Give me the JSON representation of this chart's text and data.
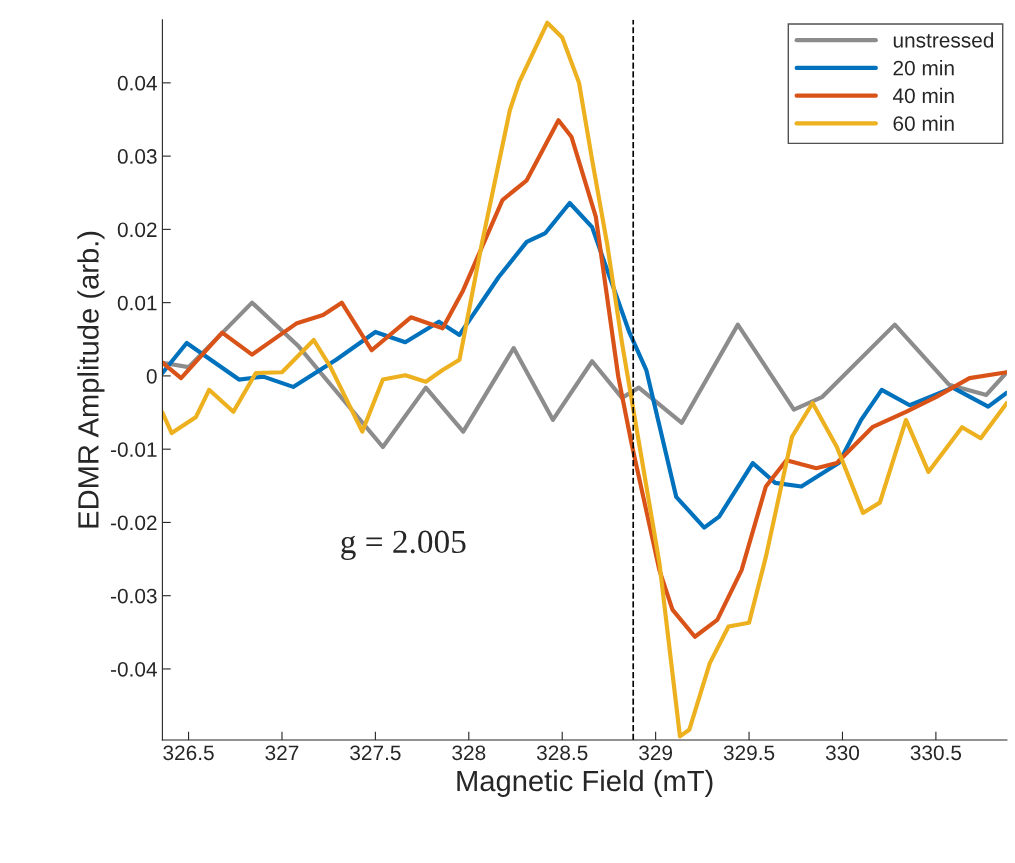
{
  "chart_data": {
    "type": "line",
    "xlabel": "Magnetic Field (mT)",
    "ylabel": "EDMR Amplitude (arb.)",
    "xlim": [
      326.36,
      330.88
    ],
    "ylim": [
      -0.0497,
      0.0486
    ],
    "xticks": [
      326.5,
      327,
      327.5,
      328,
      328.5,
      329,
      329.5,
      330,
      330.5
    ],
    "yticks": [
      -0.04,
      -0.03,
      -0.02,
      -0.01,
      0,
      0.01,
      0.02,
      0.03,
      0.04
    ],
    "grid": false,
    "legend": "top right",
    "line_style": "solid",
    "marker": "none",
    "ref_lines": [
      {
        "axis": "x",
        "value": 328.88,
        "color": "#000000",
        "line_style": "dashed"
      }
    ],
    "annotations": [
      {
        "text": "g = 2.005"
      }
    ],
    "series": [
      {
        "name": "unstressed",
        "color": "#8c8c8c",
        "x": [
          326.36,
          326.5,
          326.84,
          327.09,
          327.54,
          327.77,
          327.97,
          328.24,
          328.45,
          328.66,
          328.82,
          328.91,
          329.14,
          329.44,
          329.74,
          329.89,
          330.28,
          330.57,
          330.77,
          330.88
        ],
        "values": [
          0.0018,
          0.0012,
          0.01,
          0.004,
          -0.0097,
          -0.0016,
          -0.0076,
          0.0038,
          -0.006,
          0.002,
          -0.003,
          -0.0016,
          -0.0064,
          0.007,
          -0.0046,
          -0.0029,
          0.007,
          -0.0012,
          -0.0026,
          0.0005
        ]
      },
      {
        "name": "20 min",
        "color": "#0072bd",
        "x": [
          326.36,
          326.49,
          326.77,
          326.9,
          327.06,
          327.29,
          327.5,
          327.66,
          327.84,
          327.95,
          328.16,
          328.31,
          328.41,
          328.54,
          328.66,
          328.74,
          328.86,
          328.95,
          329.11,
          329.26,
          329.34,
          329.52,
          329.64,
          329.78,
          329.98,
          330.1,
          330.21,
          330.36,
          330.59,
          330.78,
          330.88
        ],
        "values": [
          0.0004,
          0.0045,
          -0.0005,
          -0.0001,
          -0.0015,
          0.0022,
          0.006,
          0.0046,
          0.0074,
          0.0056,
          0.0135,
          0.0183,
          0.0195,
          0.0236,
          0.0203,
          0.0145,
          0.0059,
          0.0008,
          -0.0165,
          -0.0207,
          -0.0192,
          -0.0119,
          -0.0146,
          -0.0151,
          -0.0119,
          -0.006,
          -0.0019,
          -0.004,
          -0.0016,
          -0.0042,
          -0.0023
        ]
      },
      {
        "name": "40 min",
        "color": "#d95319",
        "x": [
          326.36,
          326.46,
          326.68,
          326.84,
          327.08,
          327.22,
          327.32,
          327.48,
          327.69,
          327.86,
          327.97,
          328.18,
          328.31,
          328.48,
          328.55,
          328.68,
          328.8,
          328.87,
          329.02,
          329.09,
          329.21,
          329.33,
          329.46,
          329.59,
          329.7,
          329.86,
          329.97,
          330.16,
          330.34,
          330.5,
          330.68,
          330.88
        ],
        "values": [
          0.0018,
          -0.0003,
          0.0059,
          0.0029,
          0.0072,
          0.0083,
          0.01,
          0.0035,
          0.008,
          0.0065,
          0.0117,
          0.024,
          0.0267,
          0.0349,
          0.0326,
          0.0217,
          -0.0001,
          -0.0091,
          -0.0265,
          -0.0319,
          -0.0356,
          -0.0333,
          -0.0265,
          -0.0151,
          -0.0115,
          -0.0126,
          -0.0119,
          -0.007,
          -0.0049,
          -0.0029,
          -0.0003,
          0.0005
        ]
      },
      {
        "name": "60 min",
        "color": "#edb120",
        "x": [
          326.36,
          326.41,
          326.54,
          326.61,
          326.74,
          326.86,
          327.0,
          327.17,
          327.26,
          327.43,
          327.54,
          327.66,
          327.77,
          327.86,
          327.95,
          328.07,
          328.22,
          328.27,
          328.42,
          328.5,
          328.59,
          328.66,
          328.74,
          328.82,
          328.86,
          329.02,
          329.13,
          329.18,
          329.29,
          329.39,
          329.5,
          329.59,
          329.73,
          329.84,
          329.97,
          330.11,
          330.2,
          330.34,
          330.46,
          330.64,
          330.74,
          330.88
        ],
        "values": [
          -0.005,
          -0.0078,
          -0.0056,
          -0.0019,
          -0.0049,
          0.0004,
          0.0005,
          0.0049,
          0.0012,
          -0.0076,
          -0.0005,
          0.0001,
          -0.0008,
          0.0008,
          0.0022,
          0.0181,
          0.0363,
          0.0401,
          0.0482,
          0.0462,
          0.04,
          0.0295,
          0.0181,
          0.0045,
          -0.0015,
          -0.0255,
          -0.0492,
          -0.0483,
          -0.0392,
          -0.0342,
          -0.0337,
          -0.0247,
          -0.0083,
          -0.0037,
          -0.0097,
          -0.0187,
          -0.0173,
          -0.006,
          -0.0131,
          -0.007,
          -0.0085,
          -0.0037
        ]
      }
    ]
  }
}
